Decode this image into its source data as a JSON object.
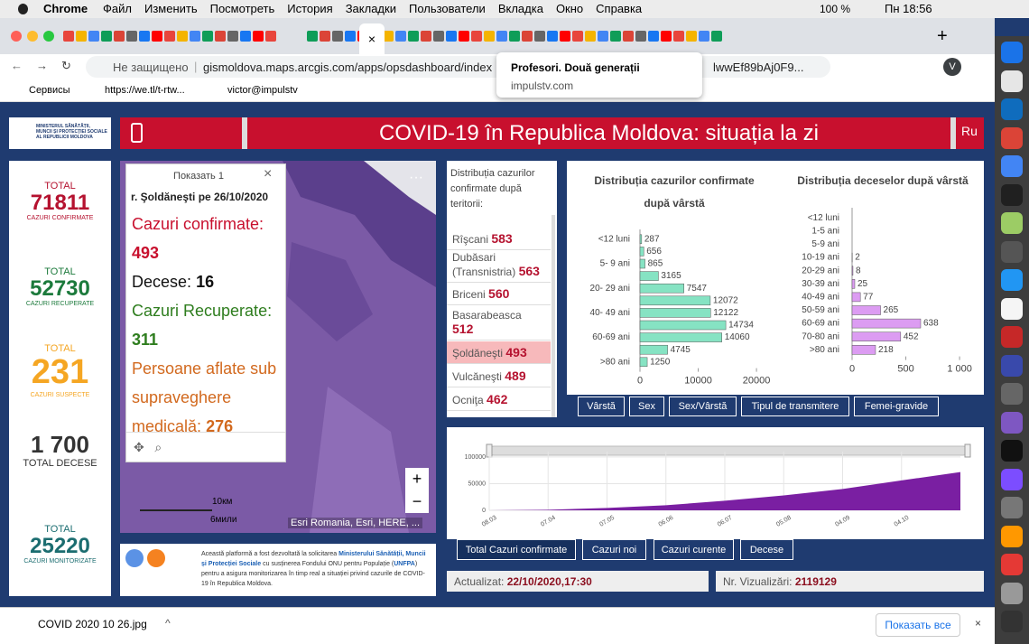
{
  "menubar": {
    "app": "Chrome",
    "items": [
      "Файл",
      "Изменить",
      "Посмотреть",
      "История",
      "Закладки",
      "Пользователи",
      "Вкладка",
      "Окно",
      "Справка"
    ],
    "battery": "100 %",
    "time": "Пн 18:56"
  },
  "browser": {
    "security": "Не защищено",
    "url": "gismoldova.maps.arcgis.com/apps/opsdashboard/index",
    "url_tail": "lwwEf89bAj0F9...",
    "profile": "V",
    "bookmarks": [
      "Сервисы",
      "https://we.tl/t-rtw...",
      "victor@impulstv"
    ],
    "tooltip": {
      "title": "Profesori. Două generații",
      "url": "impulstv.com"
    }
  },
  "dashboard": {
    "logo": "MINISTERUL SĂNĂTĂȚII, MUNCII ȘI PROTECȚIEI SOCIALE AL REPUBLICII MOLDOVA",
    "title": "COVID-19 în Republica Moldova: situația la zi",
    "lang": "Ru",
    "stats": [
      {
        "label": "TOTAL",
        "value": "71811",
        "caption": "CAZURI CONFIRMATE",
        "color": "#b5122f"
      },
      {
        "label": "TOTAL",
        "value": "52730",
        "caption": "CAZURI RECUPERATE",
        "color": "#1c7a3c"
      },
      {
        "label": "TOTAL",
        "value": "231",
        "caption": "CAZURI SUSPECTE",
        "color": "#f5a623"
      },
      {
        "value": "1 700",
        "caption": "TOTAL DECESE",
        "color": "#333333"
      },
      {
        "label": "TOTAL",
        "value": "25220",
        "caption": "CAZURI MONITORIZATE",
        "color": "#1b6d70"
      }
    ],
    "popup": {
      "header": "Показать 1",
      "place": "r. Şoldăneşti pe 26/10/2020",
      "fields": [
        {
          "label": "Cazuri confirmate:",
          "value": 493,
          "color": "#c8102e"
        },
        {
          "label": "Decese:",
          "value": 16,
          "color": "#111111"
        },
        {
          "label": "Cazuri Recuperate:",
          "value": 311,
          "color": "#2e7d1e"
        },
        {
          "label": "Persoane aflate sub supraveghere medicală:",
          "value": 276,
          "color": "#d2691e"
        }
      ]
    },
    "map": {
      "attribution": "Esri Romania, Esri, HERE, ...",
      "scale_km": "10км",
      "scale_mi": "6мили"
    },
    "territory": {
      "title": "Distribuția cazurilor confirmate după teritorii:",
      "items": [
        {
          "name": "Rîşcani",
          "value": 583
        },
        {
          "name": "Dubăsari (Transnistria)",
          "value": 563
        },
        {
          "name": "Briceni",
          "value": 560
        },
        {
          "name": "Basarabeasca",
          "value": 512
        },
        {
          "name": "Şoldăneşti",
          "value": 493
        },
        {
          "name": "Vulcăneşti",
          "value": 489
        },
        {
          "name": "Ocniţa",
          "value": 462
        }
      ]
    },
    "age_confirmed": {
      "type": "bar",
      "title": "Distribuția cazurilor confirmate după vârstă",
      "categories": [
        "<12 luni",
        null,
        "5- 9 ani",
        null,
        "20- 29 ani",
        null,
        "40- 49 ani",
        null,
        "60-69 ani",
        null,
        ">80 ani"
      ],
      "values": [
        287,
        656,
        865,
        3165,
        7547,
        12072,
        12122,
        14734,
        14060,
        4745,
        1250
      ],
      "color": "#86e3c3",
      "xlim": [
        0,
        22000
      ],
      "xticks": [
        0,
        10000,
        20000
      ]
    },
    "age_deaths": {
      "type": "bar",
      "title": "Distribuția deceselor după vârstă",
      "categories": [
        "<12 luni",
        "1-5 ani",
        "5-9 ani",
        "10-19 ani",
        "20-29 ani",
        "30-39 ani",
        "40-49 ani",
        "50-59 ani",
        "60-69 ani",
        "70-80 ani",
        ">80 ani"
      ],
      "values": [
        null,
        null,
        null,
        2,
        8,
        25,
        77,
        265,
        638,
        452,
        218
      ],
      "color": "#dc9cf2",
      "xlim": [
        0,
        1100
      ],
      "xticks": [
        0,
        500,
        {
          "value": 1000,
          "label": "1 000"
        }
      ]
    },
    "age_buttons": [
      "Vârstă",
      "Sex",
      "Sex/Vârstă",
      "Tipul de transmitere",
      "Femei-gravide"
    ],
    "timeline": {
      "type": "area",
      "categories": [
        "08.03",
        "07.04",
        "07.05",
        "06.06",
        "06.07",
        "05.08",
        "04.09",
        "04.10",
        null
      ],
      "values": [
        0,
        1000,
        4500,
        9500,
        18000,
        28000,
        40000,
        56000,
        71811
      ],
      "color": "#7a1fa2",
      "ylim": [
        0,
        110000
      ],
      "yticks": [
        0,
        50000,
        100000
      ]
    },
    "timeline_buttons": [
      "Total Cazuri confirmate",
      "Cazuri noi",
      "Cazuri curente",
      "Decese"
    ],
    "updated": {
      "label": "Actualizat:",
      "value": "22/10/2020,17:30"
    },
    "views": {
      "label": "Nr. Vizualizări:",
      "value": "2119129"
    },
    "footer_text": [
      "Această platformă a fost dezvoltată la solicitarea ",
      "Ministerului Sănătății, Muncii și Protecției Sociale",
      " cu susținerea Fondului ONU pentru Populație (",
      "UNFPA",
      ") pentru a asigura monitorizarea în timp real a situației privind cazurile de COVID-19 în Republica Moldova."
    ]
  },
  "downloads": {
    "file": "COVID 2020 10 26.jpg",
    "show_all": "Показать все"
  }
}
